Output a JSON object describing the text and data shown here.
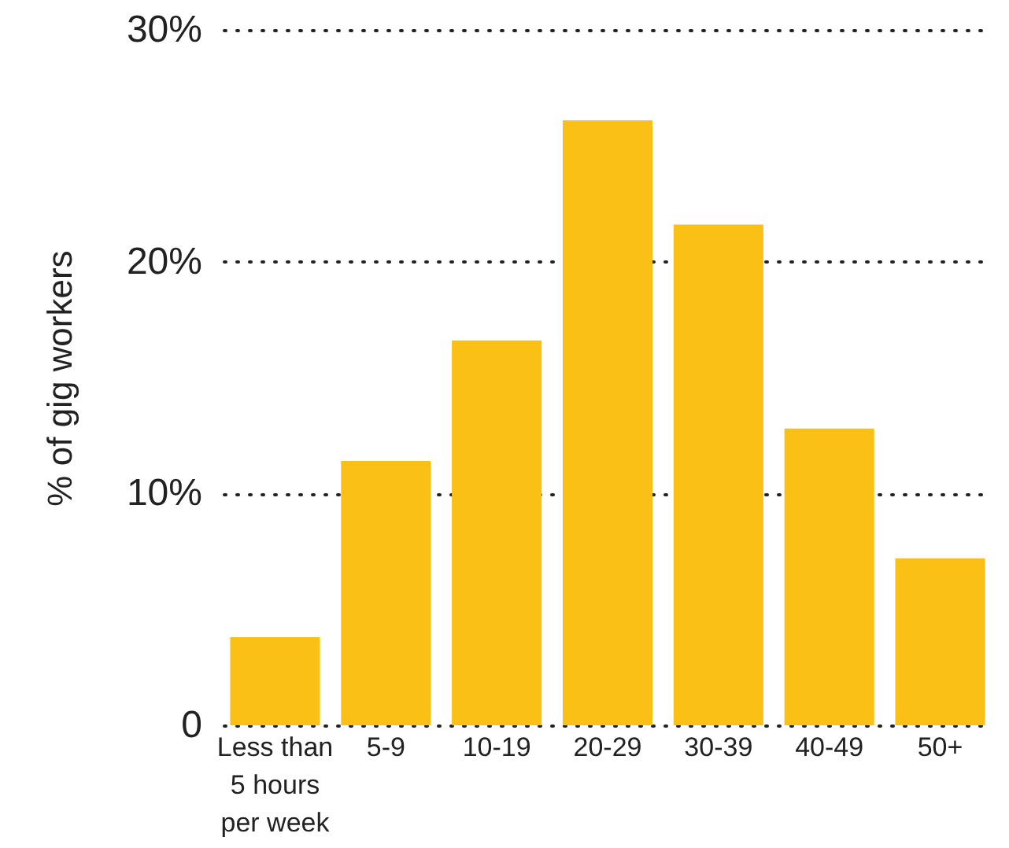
{
  "chart_data": {
    "type": "bar",
    "ylabel": "% of gig workers",
    "categories": [
      "Less than 5 hours per week",
      "5-9",
      "10-19",
      "20-29",
      "30-39",
      "40-49",
      "50+"
    ],
    "values": [
      3.8,
      11.4,
      16.6,
      26.1,
      21.6,
      12.8,
      7.2
    ],
    "color": "#fbc015",
    "ylim": [
      0,
      30
    ],
    "yticks": [
      0,
      {
        "value": 10,
        "label": "10%"
      },
      {
        "value": 20,
        "label": "20%"
      },
      {
        "value": 30,
        "label": "30%"
      }
    ],
    "grid": "y",
    "line_style": "dotted"
  }
}
